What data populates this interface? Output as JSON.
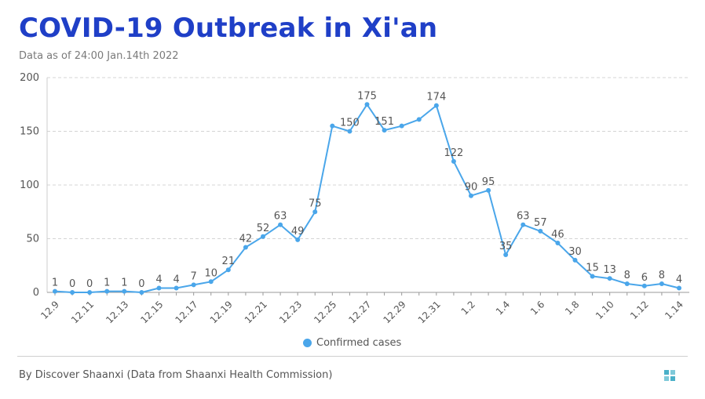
{
  "header": {
    "title": "COVID-19 Outbreak in Xi'an",
    "subtitle": "Data as of 24:00 Jan.14th 2022"
  },
  "footer": {
    "source": "By Discover Shaanxi (Data from Shaanxi Health Commission)"
  },
  "colors": {
    "title": "#1f3fc7",
    "series": "#4aa6ea",
    "grid": "#d4d4d4"
  },
  "chart_data": {
    "type": "line",
    "title": "COVID-19 Outbreak in Xi'an",
    "xlabel": "",
    "ylabel": "",
    "ylim": [
      0,
      200
    ],
    "yticks": [
      0,
      50,
      100,
      150,
      200
    ],
    "grid": "horizontal-dashed",
    "legend_position": "bottom-center",
    "x": [
      "12.9",
      "12.10",
      "12.11",
      "12.12",
      "12.13",
      "12.14",
      "12.15",
      "12.16",
      "12.17",
      "12.18",
      "12.19",
      "12.20",
      "12.21",
      "12.22",
      "12.23",
      "12.24",
      "12.25",
      "12.26",
      "12.27",
      "12.28",
      "12.29",
      "12.30",
      "12.31",
      "1.1",
      "1.2",
      "1.3",
      "1.4",
      "1.5",
      "1.6",
      "1.7",
      "1.8",
      "1.9",
      "1.10",
      "1.11",
      "1.12",
      "1.13",
      "1.14"
    ],
    "x_tick_labels": [
      "12.9",
      "12.11",
      "12.13",
      "12.15",
      "12.17",
      "12.19",
      "12.21",
      "12.23",
      "12.25",
      "12.27",
      "12.29",
      "12.31",
      "1.2",
      "1.4",
      "1.6",
      "1.8",
      "1.10",
      "1.12",
      "1.14"
    ],
    "series": [
      {
        "name": "Confirmed cases",
        "values": [
          1,
          0,
          0,
          1,
          1,
          0,
          4,
          4,
          7,
          10,
          21,
          42,
          52,
          63,
          49,
          75,
          155,
          150,
          175,
          151,
          155,
          161,
          174,
          122,
          90,
          95,
          35,
          63,
          57,
          46,
          30,
          15,
          13,
          8,
          6,
          8,
          4
        ],
        "labels": [
          "1",
          "0",
          "0",
          "1",
          "1",
          "0",
          "4",
          "4",
          "7",
          "10",
          "21",
          "42",
          "52",
          "63",
          "49",
          "75",
          "",
          "150",
          "175",
          "151",
          "",
          "",
          "174",
          "122",
          "90",
          "95",
          "35",
          "63",
          "57",
          "46",
          "30",
          "15",
          "13",
          "8",
          "6",
          "8",
          "4"
        ]
      }
    ]
  }
}
